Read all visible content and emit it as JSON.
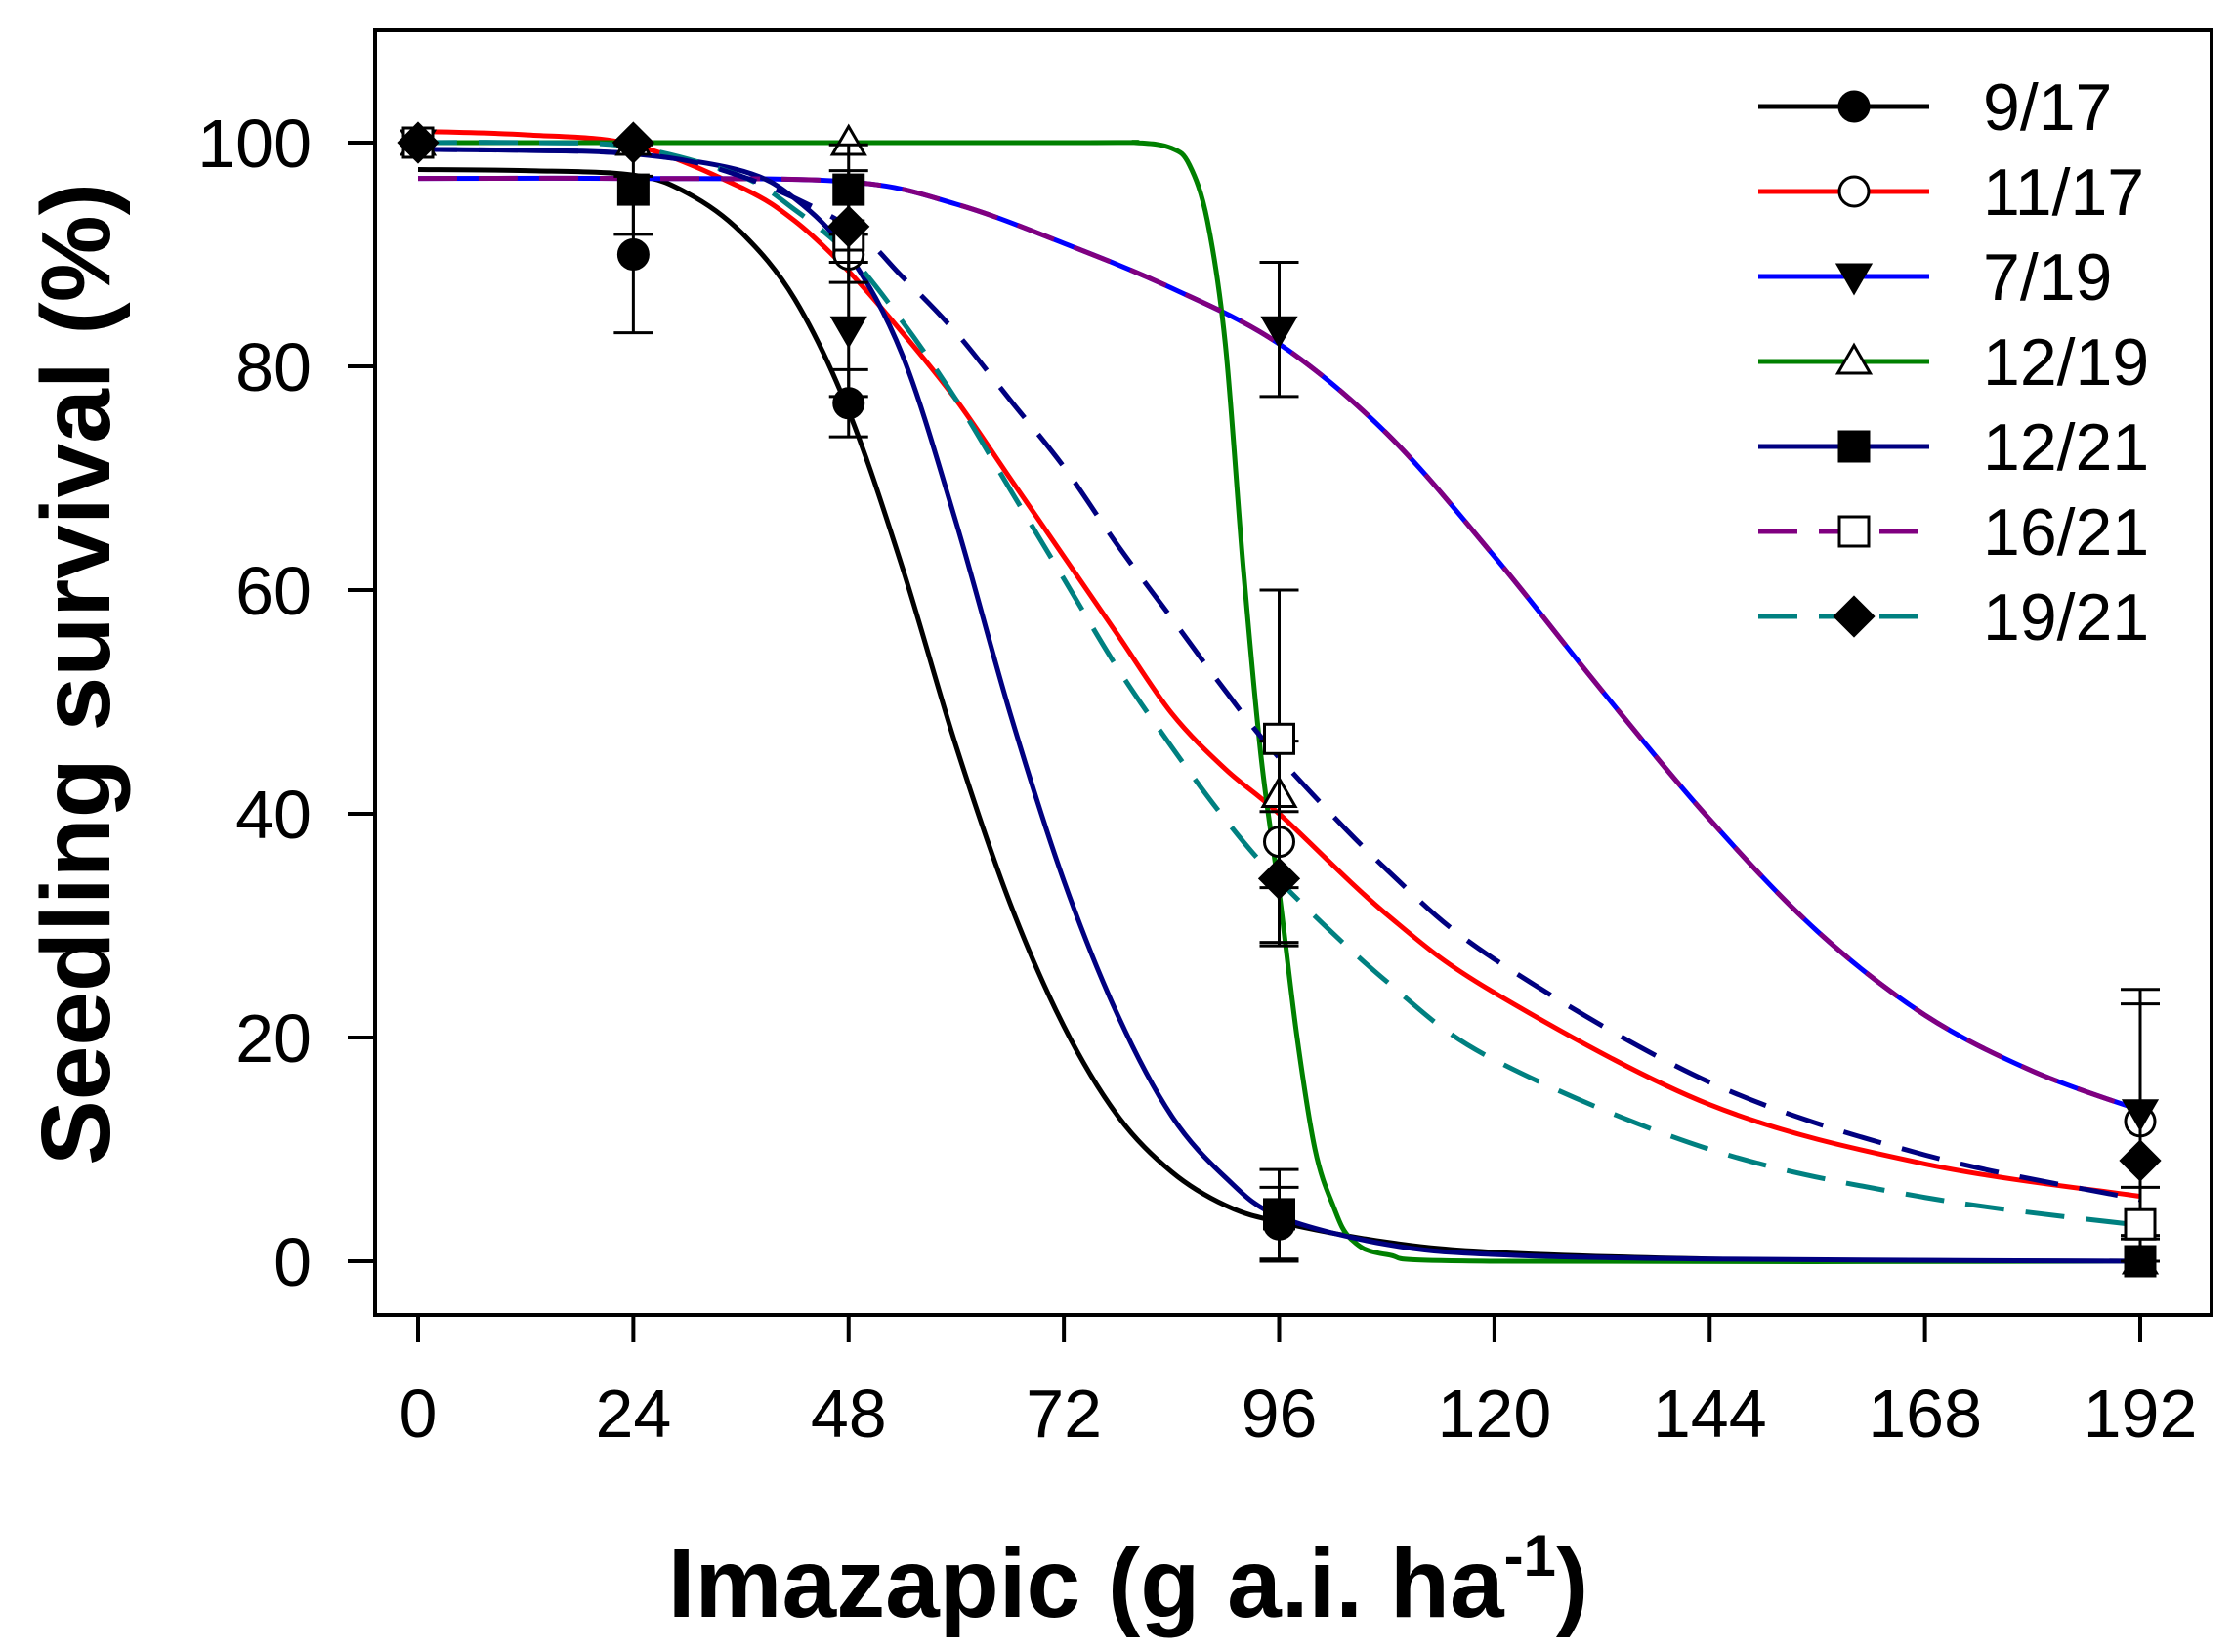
{
  "chart_data": {
    "type": "line",
    "title": "",
    "xlabel": "Imazapic (g a.i. ha",
    "xlabel_sup": "-1",
    "xlabel_end": ")",
    "ylabel": "Seedling survival (%)",
    "xlim": [
      -5,
      198
    ],
    "ylim": [
      -5,
      110
    ],
    "xticks": [
      0,
      24,
      48,
      72,
      96,
      120,
      144,
      168,
      192
    ],
    "yticks": [
      0,
      20,
      40,
      60,
      80,
      100
    ],
    "legend_position": "top-right",
    "series": [
      {
        "name": "9/17",
        "color": "#000000",
        "dash": "solid",
        "marker": "circle",
        "fill": "filled",
        "curve": [
          [
            0,
            97.6
          ],
          [
            12,
            97.5
          ],
          [
            24,
            97.1
          ],
          [
            30,
            95.5
          ],
          [
            36,
            92
          ],
          [
            42,
            86
          ],
          [
            48,
            76
          ],
          [
            54,
            62
          ],
          [
            60,
            46
          ],
          [
            66,
            32
          ],
          [
            72,
            21
          ],
          [
            78,
            13
          ],
          [
            84,
            8
          ],
          [
            90,
            5
          ],
          [
            96,
            3.5
          ],
          [
            108,
            1.7
          ],
          [
            120,
            0.8
          ],
          [
            144,
            0.2
          ],
          [
            168,
            0.05
          ],
          [
            192,
            0
          ]
        ],
        "points": [
          {
            "x": 0,
            "y": 100,
            "err": 0
          },
          {
            "x": 24,
            "y": 90,
            "err": 7
          },
          {
            "x": 48,
            "y": 76.7,
            "err": 3
          },
          {
            "x": 96,
            "y": 3.3,
            "err": 3.3
          },
          {
            "x": 192,
            "y": 0,
            "err": 0
          }
        ]
      },
      {
        "name": "11/17",
        "color": "#ff0000",
        "dash": "solid",
        "marker": "circle",
        "fill": "open",
        "curve": [
          [
            0,
            101
          ],
          [
            12,
            100.7
          ],
          [
            24,
            99.8
          ],
          [
            36,
            96
          ],
          [
            42,
            93
          ],
          [
            48,
            88.5
          ],
          [
            54,
            83
          ],
          [
            60,
            77
          ],
          [
            66,
            70
          ],
          [
            72,
            63
          ],
          [
            78,
            56
          ],
          [
            84,
            49
          ],
          [
            90,
            44
          ],
          [
            96,
            40
          ],
          [
            108,
            31
          ],
          [
            120,
            24
          ],
          [
            144,
            14
          ],
          [
            168,
            8.7
          ],
          [
            192,
            5.8
          ]
        ],
        "points": [
          {
            "x": 0,
            "y": 100,
            "err": 0
          },
          {
            "x": 48,
            "y": 90,
            "err": 0
          },
          {
            "x": 96,
            "y": 37.5,
            "err": 9
          },
          {
            "x": 192,
            "y": 12.5,
            "err": 10.5
          }
        ]
      },
      {
        "name": "7/19",
        "color": "#0000ff",
        "dash": "solid",
        "marker": "triangle-down",
        "fill": "filled",
        "curve": [
          [
            0,
            96.8
          ],
          [
            24,
            96.8
          ],
          [
            48,
            96.5
          ],
          [
            60,
            94.5
          ],
          [
            72,
            91
          ],
          [
            84,
            87
          ],
          [
            96,
            82
          ],
          [
            108,
            74
          ],
          [
            120,
            63
          ],
          [
            132,
            51
          ],
          [
            144,
            39.5
          ],
          [
            156,
            29.5
          ],
          [
            168,
            22
          ],
          [
            180,
            17
          ],
          [
            192,
            13.5
          ]
        ],
        "points": [
          {
            "x": 0,
            "y": 100,
            "err": 0
          },
          {
            "x": 48,
            "y": 83.3,
            "err": 6
          },
          {
            "x": 96,
            "y": 83.3,
            "err": 6
          },
          {
            "x": 192,
            "y": 13.3,
            "err": 11
          }
        ]
      },
      {
        "name": "12/19",
        "color": "#008000",
        "dash": "solid",
        "marker": "triangle-up",
        "fill": "open",
        "curve": [
          [
            0,
            100
          ],
          [
            72,
            100
          ],
          [
            80,
            100
          ],
          [
            84,
            99.5
          ],
          [
            86,
            98
          ],
          [
            88,
            93
          ],
          [
            90,
            82
          ],
          [
            92,
            62
          ],
          [
            94,
            45
          ],
          [
            96,
            33
          ],
          [
            98,
            20
          ],
          [
            100,
            10
          ],
          [
            102,
            5
          ],
          [
            104,
            2
          ],
          [
            108,
            0.6
          ],
          [
            120,
            0
          ],
          [
            192,
            0
          ]
        ],
        "points": [
          {
            "x": 0,
            "y": 100,
            "err": 0
          },
          {
            "x": 24,
            "y": 100,
            "err": 0
          },
          {
            "x": 48,
            "y": 100,
            "err": 0
          },
          {
            "x": 96,
            "y": 41.7,
            "err": 0
          },
          {
            "x": 192,
            "y": 0,
            "err": 0
          }
        ]
      },
      {
        "name": "12/21",
        "color": "#000080",
        "dash": "solid",
        "marker": "square",
        "fill": "filled",
        "curve": [
          [
            0,
            99.4
          ],
          [
            12,
            99.3
          ],
          [
            24,
            99
          ],
          [
            36,
            97.5
          ],
          [
            42,
            95
          ],
          [
            48,
            90
          ],
          [
            54,
            81
          ],
          [
            60,
            66
          ],
          [
            66,
            49
          ],
          [
            72,
            34
          ],
          [
            78,
            22
          ],
          [
            84,
            13
          ],
          [
            90,
            7.5
          ],
          [
            96,
            4
          ],
          [
            108,
            1.5
          ],
          [
            120,
            0.6
          ],
          [
            144,
            0.2
          ],
          [
            192,
            0
          ]
        ],
        "points": [
          {
            "x": 0,
            "y": 100,
            "err": 0
          },
          {
            "x": 24,
            "y": 95.8,
            "err": 4
          },
          {
            "x": 48,
            "y": 95.8,
            "err": 4
          },
          {
            "x": 96,
            "y": 4.2,
            "err": 4
          },
          {
            "x": 192,
            "y": 0,
            "err": 0
          }
        ]
      },
      {
        "name": "16/21",
        "color": "#800080",
        "dash": "dashed",
        "marker": "square",
        "fill": "open",
        "curve": [
          [
            0,
            96.8
          ],
          [
            24,
            96.8
          ],
          [
            48,
            96.5
          ],
          [
            60,
            94.5
          ],
          [
            72,
            91
          ],
          [
            84,
            87
          ],
          [
            96,
            82
          ],
          [
            108,
            74
          ],
          [
            120,
            63
          ],
          [
            132,
            51
          ],
          [
            144,
            39.5
          ],
          [
            156,
            29.5
          ],
          [
            168,
            22
          ],
          [
            180,
            17
          ],
          [
            192,
            13.5
          ]
        ],
        "points": [
          {
            "x": 0,
            "y": 100,
            "err": 0
          },
          {
            "x": 48,
            "y": 91.7,
            "err": 0
          },
          {
            "x": 96,
            "y": 46.7,
            "err": 13.3
          },
          {
            "x": 192,
            "y": 3.3,
            "err": 3.3
          }
        ]
      },
      {
        "name": "19/21",
        "color": "#008080",
        "dash": "dashed",
        "marker": "diamond",
        "fill": "filled",
        "curve": [
          [
            0,
            100
          ],
          [
            12,
            100
          ],
          [
            24,
            99.6
          ],
          [
            36,
            97
          ],
          [
            42,
            94
          ],
          [
            48,
            90
          ],
          [
            54,
            84
          ],
          [
            60,
            77
          ],
          [
            66,
            69
          ],
          [
            72,
            61
          ],
          [
            78,
            53
          ],
          [
            84,
            46
          ],
          [
            90,
            39.5
          ],
          [
            96,
            34
          ],
          [
            108,
            25
          ],
          [
            120,
            18
          ],
          [
            144,
            10
          ],
          [
            168,
            5.7
          ],
          [
            192,
            3.2
          ]
        ],
        "points": [
          {
            "x": 0,
            "y": 100,
            "err": 0
          },
          {
            "x": 24,
            "y": 100,
            "err": 0
          },
          {
            "x": 48,
            "y": 92.5,
            "err": 5
          },
          {
            "x": 96,
            "y": 34.2,
            "err": 6
          },
          {
            "x": 192,
            "y": 9,
            "err": 0
          }
        ]
      },
      {
        "name": "",
        "color": "#000080",
        "dash": "dashed",
        "marker": "none",
        "fill": "none",
        "legend": false,
        "curve": [
          [
            0,
            99.4
          ],
          [
            24,
            99
          ],
          [
            36,
            97
          ],
          [
            48,
            92.5
          ],
          [
            54,
            88
          ],
          [
            60,
            83
          ],
          [
            66,
            77
          ],
          [
            72,
            71
          ],
          [
            78,
            64
          ],
          [
            84,
            57.5
          ],
          [
            90,
            51
          ],
          [
            96,
            45
          ],
          [
            108,
            35
          ],
          [
            120,
            27
          ],
          [
            144,
            16
          ],
          [
            168,
            9.5
          ],
          [
            192,
            5.5
          ]
        ],
        "points": []
      }
    ]
  }
}
